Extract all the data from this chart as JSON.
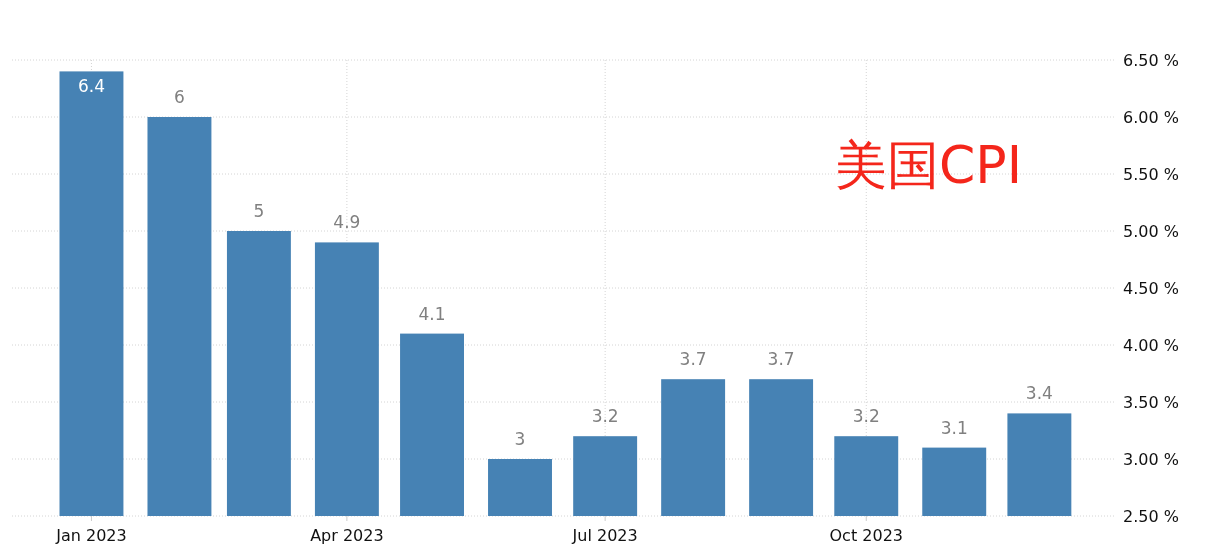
{
  "chart_data": {
    "type": "bar",
    "title": "美国CPI",
    "x": [
      "2023-01",
      "2023-02",
      "2023-03",
      "2023-04",
      "2023-05",
      "2023-06",
      "2023-07",
      "2023-08",
      "2023-09",
      "2023-10",
      "2023-11",
      "2023-12"
    ],
    "values": [
      6.4,
      6,
      5,
      4.9,
      4.1,
      3,
      3.2,
      3.7,
      3.7,
      3.2,
      3.1,
      3.4
    ],
    "color": "#4682b4",
    "xlim": [
      "2022-12-04",
      "2023-12-28"
    ],
    "xticks": [
      {
        "value": "2023-01",
        "label": "Jan 2023"
      },
      {
        "value": "2023-04",
        "label": "Apr 2023"
      },
      {
        "value": "2023-07",
        "label": "Jul 2023"
      },
      {
        "value": "2023-10",
        "label": "Oct 2023"
      }
    ],
    "ylim": [
      2.5,
      6.5
    ],
    "yticks": [
      {
        "value": 2.5,
        "label": "2.50 %"
      },
      {
        "value": 3,
        "label": "3.00 %"
      },
      {
        "value": 3.5,
        "label": "3.50 %"
      },
      {
        "value": 4,
        "label": "4.00 %"
      },
      {
        "value": 4.5,
        "label": "4.50 %"
      },
      {
        "value": 5,
        "label": "5.00 %"
      },
      {
        "value": 5.5,
        "label": "5.50 %"
      },
      {
        "value": 6,
        "label": "6.00 %"
      },
      {
        "value": 6.5,
        "label": "6.50 %"
      }
    ],
    "data_labels": true,
    "grid": true
  }
}
